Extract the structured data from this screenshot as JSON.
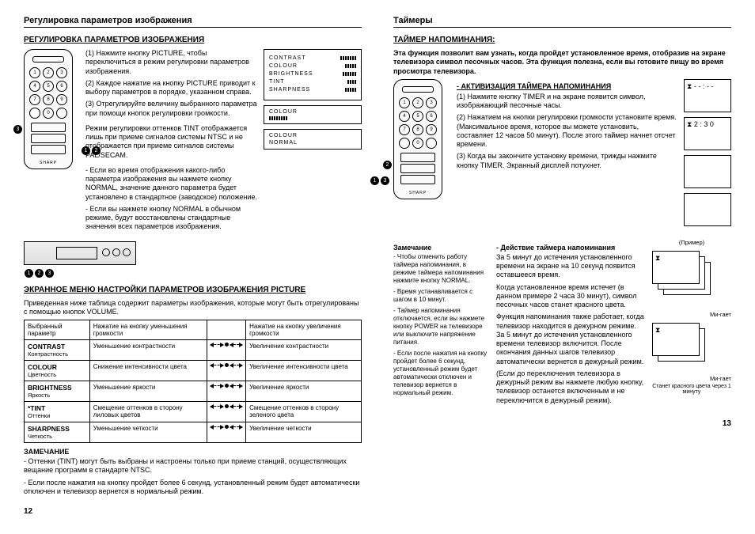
{
  "left": {
    "running_head": "Регулировка параметров изображения",
    "title": "РЕГУЛИРОВКА ПАРАМЕТРОВ ИЗОБРАЖЕНИЯ",
    "steps": {
      "s1": "(1) Нажмите кнопку PICTURE, чтобы переключиться в режим регулировки параметров изображения.",
      "s2": "(2) Каждое нажатие на кнопку PICTURE приводит к выбору параметров в порядке, указанном справа.",
      "s3": "(3) Отрегулируйте величину выбранного параметра при помощи кнопок регулировки громкости."
    },
    "tint_note": "Режим регулировки оттенков TINT отображается лишь при приеме сигналов системы NTSC и не отображается при приеме сигналов системы PAL/SECAM.",
    "normal1": "- Если во время отображения какого-либо параметра изображения вы нажмете кнопку NORMAL, значение данного параметра будет установлено в стандартное (заводское) положение.",
    "normal2": "- Если вы нажмете кнопку NORMAL в обычном режиме, будут восстановлены стандартные значения всех параметров изображения.",
    "osd_labels": {
      "contrast": "CONTRAST",
      "colour": "COLOUR",
      "brightness": "BRIGHTNESS",
      "tint": "TINT",
      "sharpness": "SHARPNESS",
      "normal": "NORMAL"
    },
    "menu_title": "ЭКРАННОЕ МЕНЮ НАСТРОЙКИ ПАРАМЕТРОВ ИЗОБРАЖЕНИЯ PICTURE",
    "menu_intro": "Приведенная ниже таблица содержит параметры изображения, которые могут быть отрегулированы с помощью кнопок VOLUME.",
    "table": {
      "h1": "Выбранный параметр",
      "h2": "Нажатие на кнопку уменьшения громкости",
      "h3": "Нажатие на кнопку увеличения громкости",
      "rows": [
        {
          "name": "CONTRAST",
          "sub": "Контрастность",
          "down": "Уменьшение контрастности",
          "up": "Увеличение контрастности"
        },
        {
          "name": "COLOUR",
          "sub": "Цветность",
          "down": "Снижение интенсивности цвета",
          "up": "Увеличение интенсивности цвета"
        },
        {
          "name": "BRIGHTNESS",
          "sub": "Яркость",
          "down": "Уменьшение яркости",
          "up": "Увеличение яркости"
        },
        {
          "name": "*TINT",
          "sub": "Оттенки",
          "down": "Смещение оттенков в сторону лиловых цветов",
          "up": "Смещение оттенков в сторону зеленого цвета"
        },
        {
          "name": "SHARPNESS",
          "sub": "Четкость",
          "down": "Уменьшение четкости",
          "up": "Увеличение четкости"
        }
      ]
    },
    "note_title": "ЗАМЕЧАНИЕ",
    "note1": "- Оттенки (TINT) могут быть выбраны и настроены только при приеме станций, осуществляющих вещание программ в стандарте NTSC.",
    "note2": "- Если после нажатия на кнопку пройдет более 6 секунд, установленный режим будет автоматически отключен и телевизор вернется в нормальный режим.",
    "pagenum": "12"
  },
  "right": {
    "running_head": "Таймеры",
    "title": "ТАЙМЕР НАПОМИНАНИЯ:",
    "intro": "Эта функция позволит вам узнать, когда пройдет установленное время, отобразив на экране телевизора символ песочных часов. Эта функция полезна, если вы готовите пищу во время просмотра телевизора.",
    "act_title": "- АКТИВИЗАЦИЯ ТАЙМЕРА НАПОМИНАНИЯ",
    "act1": "(1) Нажмите кнопку TIMER и на экране появится символ, изображающий песочные часы.",
    "act2": "(2) Нажатием на кнопки регулировки громкости установите время. (Максимальное время, которое вы можете установить, составляет 12 часов 50 минут). После этого таймер начнет отсчет времени.",
    "act3": "(3) Когда вы закончите установку времени, трижды нажмите кнопку TIMER. Экранный дисплей потухнет.",
    "timer_display1": "⧗  - - : - -",
    "timer_display2": "⧗   2 : 3 0",
    "note_title": "Замечание",
    "note1": "- Чтобы отменить работу таймера напоминания, в режиме таймера напоминания нажмите кнопку NORMAL.",
    "note2": "- Время устанавливается с шагом в 10 минут.",
    "note3": "- Таймер напоминания отключается, если вы нажмете кнопку POWER на телевизоре или выключите напряжение питания.",
    "note4": "- Если после нажатия на кнопку пройдет более 6 секунд, установленный режим будет автоматически отключен и телевизор вернется в нормальный режим.",
    "action_title": "- Действие таймера напоминания",
    "action1": "За 5 минут до истечения установленного времени на экране на 10 секунд появится оставшееся время.",
    "action2": "Когда установленное время истечет (в данном примере 2 часа 30 минут), символ песочных часов станет красного цвета.",
    "action3": "Функция напоминания также работает, когда телевизор находится в дежурном режиме. За 5 минут до истечения установленного времени телевизор включится. После окончания данных шагов телевизор автоматически вернется в дежурный режим.",
    "action4": "(Если до переключения телевизора в дежурный режим вы нажмете любую кнопку, телевизор останется включенным и не переключится в дежурный режим).",
    "example_label": "(Пример)",
    "blink": "Ми-гает",
    "caption": "Станет красного цвета через 1 минуту",
    "pagenum": "13"
  },
  "remote_brand": "SHARP"
}
